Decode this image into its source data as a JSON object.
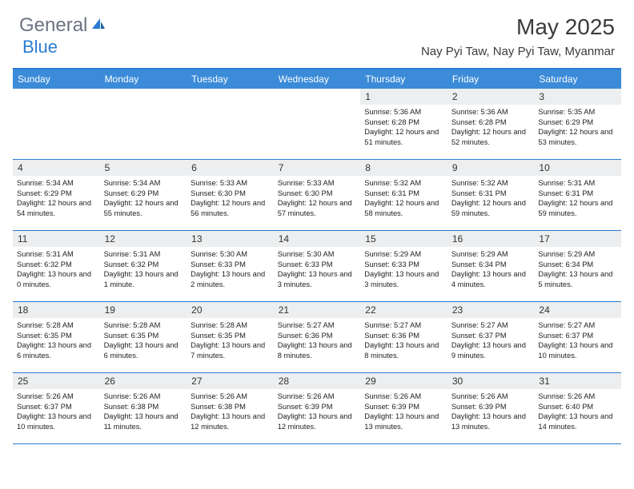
{
  "logo": {
    "text1": "General",
    "text2": "Blue"
  },
  "header": {
    "month_title": "May 2025",
    "location": "Nay Pyi Taw, Nay Pyi Taw, Myanmar"
  },
  "colors": {
    "header_bar": "#3b8bd8",
    "rule": "#2b7cd3",
    "daynum_bg": "#eceeef",
    "logo_gray": "#6b7280",
    "logo_blue": "#2b7cd3"
  },
  "weekdays": [
    "Sunday",
    "Monday",
    "Tuesday",
    "Wednesday",
    "Thursday",
    "Friday",
    "Saturday"
  ],
  "weeks": [
    [
      {
        "empty": true
      },
      {
        "empty": true
      },
      {
        "empty": true
      },
      {
        "empty": true
      },
      {
        "n": "1",
        "sr": "5:36 AM",
        "ss": "6:28 PM",
        "dl": "12 hours and 51 minutes."
      },
      {
        "n": "2",
        "sr": "5:36 AM",
        "ss": "6:28 PM",
        "dl": "12 hours and 52 minutes."
      },
      {
        "n": "3",
        "sr": "5:35 AM",
        "ss": "6:29 PM",
        "dl": "12 hours and 53 minutes."
      }
    ],
    [
      {
        "n": "4",
        "sr": "5:34 AM",
        "ss": "6:29 PM",
        "dl": "12 hours and 54 minutes."
      },
      {
        "n": "5",
        "sr": "5:34 AM",
        "ss": "6:29 PM",
        "dl": "12 hours and 55 minutes."
      },
      {
        "n": "6",
        "sr": "5:33 AM",
        "ss": "6:30 PM",
        "dl": "12 hours and 56 minutes."
      },
      {
        "n": "7",
        "sr": "5:33 AM",
        "ss": "6:30 PM",
        "dl": "12 hours and 57 minutes."
      },
      {
        "n": "8",
        "sr": "5:32 AM",
        "ss": "6:31 PM",
        "dl": "12 hours and 58 minutes."
      },
      {
        "n": "9",
        "sr": "5:32 AM",
        "ss": "6:31 PM",
        "dl": "12 hours and 59 minutes."
      },
      {
        "n": "10",
        "sr": "5:31 AM",
        "ss": "6:31 PM",
        "dl": "12 hours and 59 minutes."
      }
    ],
    [
      {
        "n": "11",
        "sr": "5:31 AM",
        "ss": "6:32 PM",
        "dl": "13 hours and 0 minutes."
      },
      {
        "n": "12",
        "sr": "5:31 AM",
        "ss": "6:32 PM",
        "dl": "13 hours and 1 minute."
      },
      {
        "n": "13",
        "sr": "5:30 AM",
        "ss": "6:33 PM",
        "dl": "13 hours and 2 minutes."
      },
      {
        "n": "14",
        "sr": "5:30 AM",
        "ss": "6:33 PM",
        "dl": "13 hours and 3 minutes."
      },
      {
        "n": "15",
        "sr": "5:29 AM",
        "ss": "6:33 PM",
        "dl": "13 hours and 3 minutes."
      },
      {
        "n": "16",
        "sr": "5:29 AM",
        "ss": "6:34 PM",
        "dl": "13 hours and 4 minutes."
      },
      {
        "n": "17",
        "sr": "5:29 AM",
        "ss": "6:34 PM",
        "dl": "13 hours and 5 minutes."
      }
    ],
    [
      {
        "n": "18",
        "sr": "5:28 AM",
        "ss": "6:35 PM",
        "dl": "13 hours and 6 minutes."
      },
      {
        "n": "19",
        "sr": "5:28 AM",
        "ss": "6:35 PM",
        "dl": "13 hours and 6 minutes."
      },
      {
        "n": "20",
        "sr": "5:28 AM",
        "ss": "6:35 PM",
        "dl": "13 hours and 7 minutes."
      },
      {
        "n": "21",
        "sr": "5:27 AM",
        "ss": "6:36 PM",
        "dl": "13 hours and 8 minutes."
      },
      {
        "n": "22",
        "sr": "5:27 AM",
        "ss": "6:36 PM",
        "dl": "13 hours and 8 minutes."
      },
      {
        "n": "23",
        "sr": "5:27 AM",
        "ss": "6:37 PM",
        "dl": "13 hours and 9 minutes."
      },
      {
        "n": "24",
        "sr": "5:27 AM",
        "ss": "6:37 PM",
        "dl": "13 hours and 10 minutes."
      }
    ],
    [
      {
        "n": "25",
        "sr": "5:26 AM",
        "ss": "6:37 PM",
        "dl": "13 hours and 10 minutes."
      },
      {
        "n": "26",
        "sr": "5:26 AM",
        "ss": "6:38 PM",
        "dl": "13 hours and 11 minutes."
      },
      {
        "n": "27",
        "sr": "5:26 AM",
        "ss": "6:38 PM",
        "dl": "13 hours and 12 minutes."
      },
      {
        "n": "28",
        "sr": "5:26 AM",
        "ss": "6:39 PM",
        "dl": "13 hours and 12 minutes."
      },
      {
        "n": "29",
        "sr": "5:26 AM",
        "ss": "6:39 PM",
        "dl": "13 hours and 13 minutes."
      },
      {
        "n": "30",
        "sr": "5:26 AM",
        "ss": "6:39 PM",
        "dl": "13 hours and 13 minutes."
      },
      {
        "n": "31",
        "sr": "5:26 AM",
        "ss": "6:40 PM",
        "dl": "13 hours and 14 minutes."
      }
    ]
  ],
  "labels": {
    "sunrise": "Sunrise: ",
    "sunset": "Sunset: ",
    "daylight": "Daylight: "
  }
}
